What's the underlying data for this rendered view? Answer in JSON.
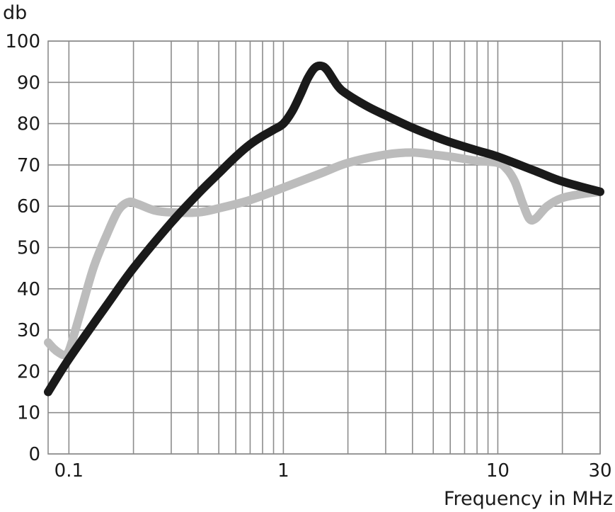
{
  "chart_data": {
    "type": "line",
    "title": "",
    "ylabel": "db",
    "xlabel": "Frequency in MHz",
    "x_scale": "log",
    "xlim": [
      0.08,
      30
    ],
    "ylim": [
      0,
      100
    ],
    "grid": true,
    "legend": "none",
    "x_ticks": [
      {
        "value": 0.1,
        "label": "0.1"
      },
      {
        "value": 1,
        "label": "1"
      },
      {
        "value": 10,
        "label": "10"
      },
      {
        "value": 30,
        "label": "30"
      }
    ],
    "y_ticks": [
      0,
      10,
      20,
      30,
      40,
      50,
      60,
      70,
      80,
      90,
      100
    ],
    "x_minor_grid": [
      0.2,
      0.3,
      0.4,
      0.5,
      0.6,
      0.7,
      0.8,
      0.9,
      2,
      3,
      4,
      5,
      6,
      7,
      8,
      9,
      20
    ],
    "series": [
      {
        "color": "#1a1a1a",
        "width": 12,
        "points": [
          [
            0.08,
            15
          ],
          [
            0.1,
            23
          ],
          [
            0.15,
            36
          ],
          [
            0.2,
            45
          ],
          [
            0.3,
            56
          ],
          [
            0.4,
            63
          ],
          [
            0.5,
            68
          ],
          [
            0.6,
            72
          ],
          [
            0.7,
            75
          ],
          [
            0.8,
            77
          ],
          [
            0.9,
            78.5
          ],
          [
            1.0,
            80
          ],
          [
            1.1,
            83
          ],
          [
            1.2,
            87
          ],
          [
            1.3,
            91
          ],
          [
            1.4,
            93.5
          ],
          [
            1.5,
            94
          ],
          [
            1.6,
            93
          ],
          [
            1.8,
            89
          ],
          [
            2.0,
            87
          ],
          [
            2.5,
            84
          ],
          [
            3,
            82
          ],
          [
            4,
            79
          ],
          [
            5,
            77
          ],
          [
            6,
            75.5
          ],
          [
            8,
            73.5
          ],
          [
            10,
            72
          ],
          [
            15,
            68.5
          ],
          [
            20,
            66
          ],
          [
            30,
            63.5
          ]
        ]
      },
      {
        "color": "#bcbcbc",
        "width": 12,
        "points": [
          [
            0.08,
            27
          ],
          [
            0.085,
            25.5
          ],
          [
            0.09,
            24.5
          ],
          [
            0.095,
            24
          ],
          [
            0.1,
            25
          ],
          [
            0.11,
            32
          ],
          [
            0.13,
            45
          ],
          [
            0.15,
            53
          ],
          [
            0.17,
            59
          ],
          [
            0.19,
            61
          ],
          [
            0.21,
            60.5
          ],
          [
            0.25,
            59
          ],
          [
            0.3,
            58.5
          ],
          [
            0.4,
            58.5
          ],
          [
            0.5,
            59.5
          ],
          [
            0.7,
            61.5
          ],
          [
            1.0,
            64.5
          ],
          [
            1.5,
            68
          ],
          [
            2,
            70.5
          ],
          [
            3,
            72.5
          ],
          [
            4,
            73
          ],
          [
            5,
            72.5
          ],
          [
            6,
            72
          ],
          [
            8,
            71
          ],
          [
            10,
            70.5
          ],
          [
            11,
            69
          ],
          [
            12,
            66
          ],
          [
            13,
            61
          ],
          [
            14,
            57
          ],
          [
            15,
            57
          ],
          [
            17,
            60
          ],
          [
            20,
            62
          ],
          [
            25,
            63
          ],
          [
            30,
            63.5
          ]
        ]
      }
    ]
  }
}
